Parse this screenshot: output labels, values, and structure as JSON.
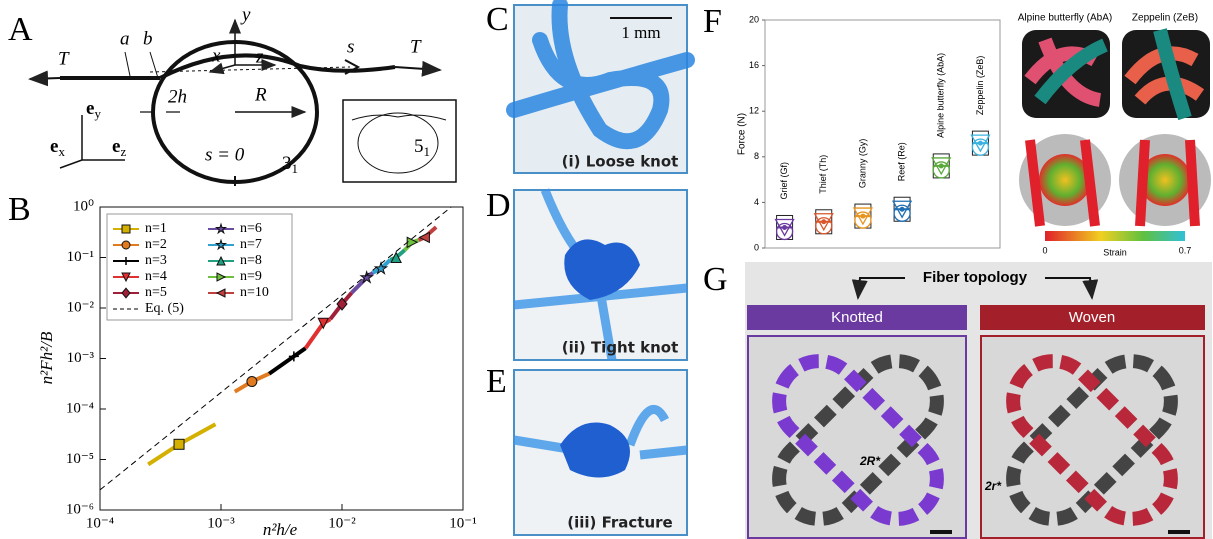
{
  "figure": {
    "panel_labels": [
      "A",
      "B",
      "C",
      "D",
      "E",
      "F",
      "G"
    ],
    "panel_a": {
      "tension_left": "T",
      "points": [
        "a",
        "b"
      ],
      "axes": [
        "y",
        "x",
        "z"
      ],
      "arc": "s",
      "tension_right": "T",
      "thickness": "2h",
      "radius": "R",
      "origin": "s = 0",
      "knot": {
        "name": "3",
        "sub": "1"
      },
      "inset_knot": {
        "name": "5",
        "sub": "1"
      },
      "vectors": [
        {
          "symbol": "e",
          "sub": "y"
        },
        {
          "symbol": "e",
          "sub": "x"
        },
        {
          "symbol": "e",
          "sub": "z"
        }
      ]
    },
    "panels_cde": {
      "scale": "1 mm",
      "captions": [
        "(i) Loose knot",
        "(ii) Tight knot",
        "(iii) Fracture"
      ]
    },
    "panel_f_images": {
      "titles": [
        "Alpine butterfly (AbA)",
        "Zeppelin (ZeB)"
      ],
      "colorbar": {
        "min": 0,
        "label": "Strain",
        "max": 0.7
      }
    },
    "panel_g": {
      "title": "Fiber topology",
      "columns": [
        "Knotted",
        "Woven"
      ],
      "dimensions": [
        "2R*",
        "2r*"
      ]
    }
  },
  "chart_data": [
    {
      "type": "line",
      "log_x": true,
      "log_y": true,
      "xlabel": "n²h/e",
      "ylabel": "n²Fh²/B",
      "xlim": [
        0.0001,
        0.1
      ],
      "ylim": [
        1e-06,
        1
      ],
      "xticks": [
        {
          "value": 0.0001,
          "label": "10⁻⁴"
        },
        {
          "value": 0.001,
          "label": "10⁻³"
        },
        {
          "value": 0.01,
          "label": "10⁻²"
        },
        {
          "value": 0.1,
          "label": "10⁻¹"
        }
      ],
      "yticks": [
        {
          "value": 1e-06,
          "label": "10⁻⁶"
        },
        {
          "value": 1e-05,
          "label": "10⁻⁵"
        },
        {
          "value": 0.0001,
          "label": "10⁻⁴"
        },
        {
          "value": 0.001,
          "label": "10⁻³"
        },
        {
          "value": 0.01,
          "label": "10⁻²"
        },
        {
          "value": 0.1,
          "label": "10⁻¹"
        },
        {
          "value": 1,
          "label": "10⁰"
        }
      ],
      "series": [
        {
          "name": "n=1",
          "color": "#d4b000",
          "marker": "square",
          "x": [
            0.00025,
            0.00045,
            0.0009
          ],
          "values": [
            8e-06,
            2e-05,
            5e-05
          ]
        },
        {
          "name": "n=2",
          "color": "#e07b20",
          "marker": "circle",
          "x": [
            0.0013,
            0.0018,
            0.0025
          ],
          "values": [
            0.00022,
            0.00035,
            0.0005
          ]
        },
        {
          "name": "n=3",
          "color": "#000000",
          "marker": "plus",
          "x": [
            0.0025,
            0.004,
            0.005
          ],
          "values": [
            0.0005,
            0.0011,
            0.0016
          ]
        },
        {
          "name": "n=4",
          "color": "#e03030",
          "marker": "tri-down",
          "x": [
            0.005,
            0.007,
            0.008
          ],
          "values": [
            0.0016,
            0.005,
            0.006
          ]
        },
        {
          "name": "n=5",
          "color": "#a0203a",
          "marker": "diamond",
          "x": [
            0.008,
            0.01,
            0.012
          ],
          "values": [
            0.006,
            0.012,
            0.02
          ]
        },
        {
          "name": "n=6",
          "color": "#6a4ca0",
          "marker": "star",
          "x": [
            0.012,
            0.016,
            0.018
          ],
          "values": [
            0.02,
            0.04,
            0.05
          ]
        },
        {
          "name": "n=7",
          "color": "#30a0d0",
          "marker": "star",
          "x": [
            0.018,
            0.021,
            0.025
          ],
          "values": [
            0.05,
            0.06,
            0.09
          ]
        },
        {
          "name": "n=8",
          "color": "#20a080",
          "marker": "tri-up",
          "x": [
            0.025,
            0.028,
            0.033
          ],
          "values": [
            0.09,
            0.1,
            0.14
          ]
        },
        {
          "name": "n=9",
          "color": "#70c040",
          "marker": "tri-right",
          "x": [
            0.033,
            0.038,
            0.043
          ],
          "values": [
            0.14,
            0.2,
            0.22
          ]
        },
        {
          "name": "n=10",
          "color": "#c04040",
          "marker": "tri-left",
          "x": [
            0.043,
            0.048,
            0.06
          ],
          "values": [
            0.22,
            0.25,
            0.4
          ]
        },
        {
          "name": "Eq. (5)",
          "color": "#000000",
          "dash": true,
          "x": [
            0.0001,
            0.08
          ],
          "values": [
            2.5e-06,
            1
          ]
        }
      ]
    },
    {
      "type": "box",
      "ylabel": "Force (N)",
      "ylim": [
        0,
        20
      ],
      "yticks": [
        0,
        4,
        8,
        12,
        16,
        20
      ],
      "categories": [
        "Grief (Gf)",
        "Thief (Th)",
        "Granny (Gy)",
        "Reef (Re)",
        "Alpine butterfly (AbA)",
        "Zeppelin (ZeB)"
      ],
      "values": [
        1.8,
        2.3,
        2.8,
        3.4,
        7.2,
        9.2
      ],
      "colors": [
        "#6a3aa0",
        "#d9552a",
        "#e8951e",
        "#1f6fb4",
        "#5aaa3a",
        "#3bb3e0"
      ]
    }
  ]
}
